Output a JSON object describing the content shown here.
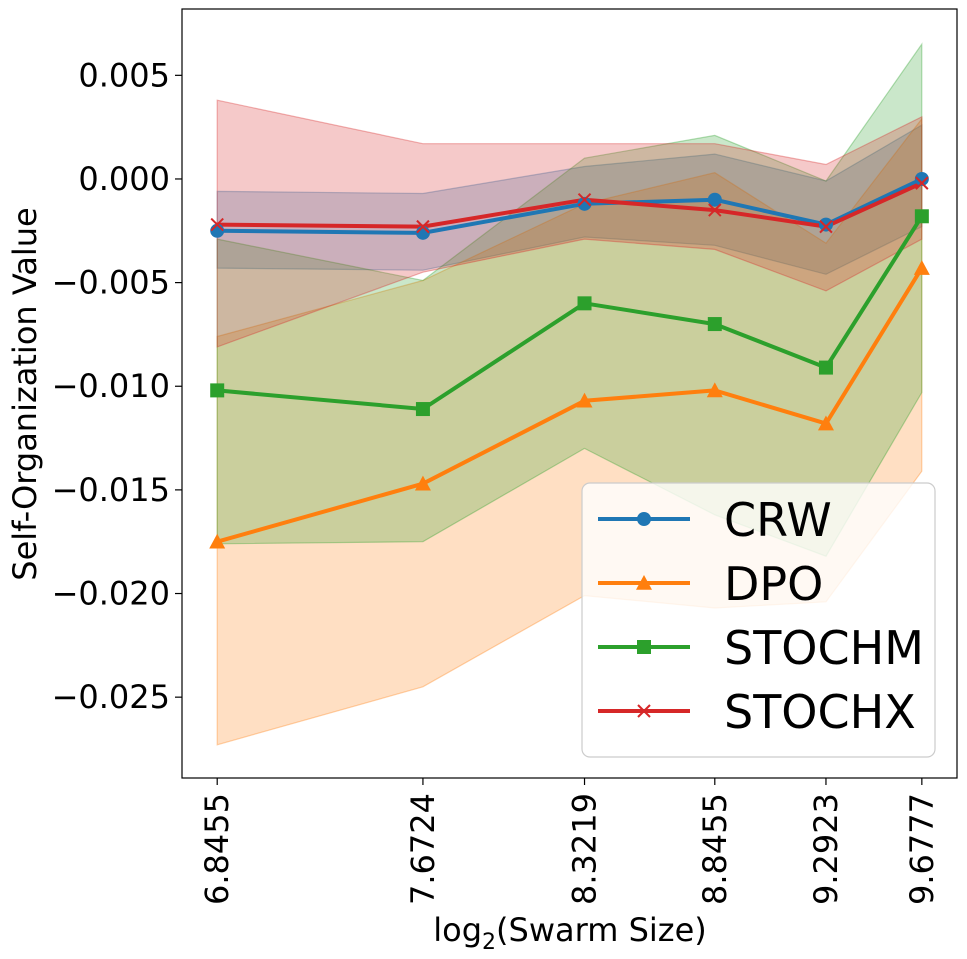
{
  "chart_data": {
    "type": "line",
    "title": "",
    "xlabel_main": "log",
    "xlabel_sub": "2",
    "xlabel_rest": "(Swarm Size)",
    "ylabel": "Self-Organization Value",
    "x": [
      6.8455,
      7.6724,
      8.3219,
      8.8455,
      9.2923,
      9.6777
    ],
    "x_tick_labels": [
      "6.8455",
      "7.6724",
      "8.3219",
      "8.8455",
      "9.2923",
      "9.6777"
    ],
    "xlim": [
      6.704,
      9.819
    ],
    "ylim": [
      -0.0289,
      0.0082
    ],
    "y_ticks": [
      0.005,
      0.0,
      -0.005,
      -0.01,
      -0.015,
      -0.02,
      -0.025
    ],
    "y_tick_labels": [
      "0.005",
      "0.000",
      "−0.005",
      "−0.010",
      "−0.015",
      "−0.020",
      "−0.025"
    ],
    "legend_position": "lower-right",
    "series": [
      {
        "name": "CRW",
        "color": "#1f77b4",
        "marker": "circle",
        "values": [
          -0.0025,
          -0.0026,
          -0.0012,
          -0.001,
          -0.0022,
          0.0
        ],
        "band_upper": [
          -0.0006,
          -0.0007,
          0.0006,
          0.0012,
          -0.0001,
          0.0026
        ],
        "band_lower": [
          -0.0043,
          -0.0044,
          -0.0028,
          -0.0032,
          -0.0046,
          -0.0023
        ]
      },
      {
        "name": "DPO",
        "color": "#ff7f0e",
        "marker": "triangle",
        "values": [
          -0.0175,
          -0.0147,
          -0.0107,
          -0.0102,
          -0.0118,
          -0.0043
        ],
        "band_upper": [
          -0.0076,
          -0.0049,
          -0.0012,
          0.0003,
          -0.0031,
          0.0029
        ],
        "band_lower": [
          -0.0273,
          -0.0245,
          -0.0201,
          -0.0207,
          -0.0204,
          -0.0141
        ]
      },
      {
        "name": "STOCHM",
        "color": "#2ca02c",
        "marker": "square",
        "values": [
          -0.0102,
          -0.0111,
          -0.006,
          -0.007,
          -0.0091,
          -0.0018
        ],
        "band_upper": [
          -0.0029,
          -0.0049,
          0.001,
          0.0021,
          -0.0001,
          0.0065
        ],
        "band_lower": [
          -0.0176,
          -0.0175,
          -0.013,
          -0.0162,
          -0.0182,
          -0.0103
        ]
      },
      {
        "name": "STOCHX",
        "color": "#d62728",
        "marker": "x",
        "values": [
          -0.0022,
          -0.0023,
          -0.001,
          -0.0015,
          -0.0023,
          -0.0002
        ],
        "band_upper": [
          0.0038,
          0.0017,
          0.0017,
          0.0017,
          0.0007,
          0.003
        ],
        "band_lower": [
          -0.0081,
          -0.0045,
          -0.0029,
          -0.0034,
          -0.0054,
          -0.0029
        ]
      }
    ]
  }
}
